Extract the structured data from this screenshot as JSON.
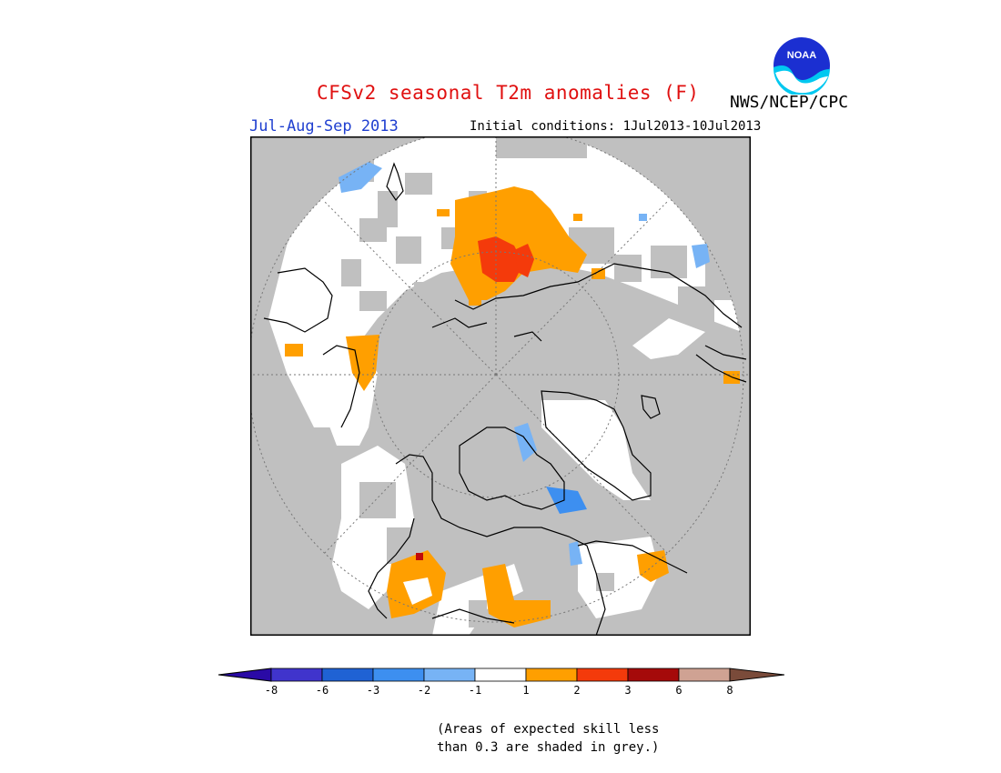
{
  "header": {
    "title": "CFSv2 seasonal T2m anomalies (F)",
    "organization": "NWS/NCEP/CPC",
    "logo_text": "NOAA",
    "period": "Jul-Aug-Sep 2013",
    "initial_conditions": "Initial conditions: 1Jul2013-10Jul2013"
  },
  "map": {
    "projection": "north-polar-stereographic",
    "background_color": "#c0c0c0",
    "coastline_color": "#000000",
    "colors": {
      "white": "#ffffff",
      "grey": "#c0c0c0",
      "orange": "#ff9f00",
      "red": "#f43a0b",
      "lightblue": "#77b3f5",
      "blue": "#3d8ff0",
      "pink": "#cfa293"
    }
  },
  "legend": {
    "labels": [
      "-8",
      "-6",
      "-3",
      "-2",
      "-1",
      "1",
      "2",
      "3",
      "6",
      "8"
    ],
    "colors": [
      "#2a0aa6",
      "#4034cc",
      "#1f62d4",
      "#3d8ff0",
      "#77b3f5",
      "#ffffff",
      "#ff9f00",
      "#f43a0b",
      "#a50a0a",
      "#cfa293",
      "#7a4b3a"
    ]
  },
  "note": {
    "line1": "(Areas of expected skill less",
    "line2": "than 0.3 are shaded in grey.)"
  }
}
